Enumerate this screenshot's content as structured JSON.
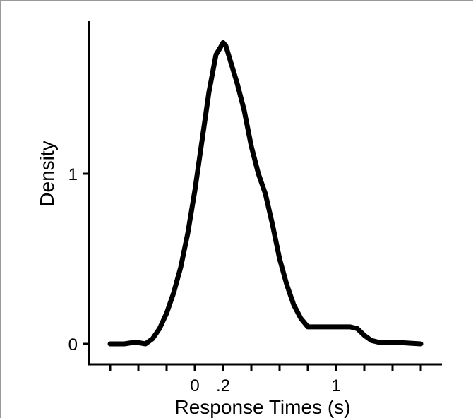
{
  "chart_data": {
    "type": "line",
    "title": "",
    "xlabel": "Response Times (s)",
    "ylabel": "Density",
    "xlim": [
      -0.6,
      1.6
    ],
    "ylim": [
      0,
      1.78
    ],
    "x_ticks": [
      -0.6,
      -0.4,
      -0.2,
      0,
      0.2,
      0.4,
      0.6,
      0.8,
      1.0,
      1.2,
      1.4,
      1.6
    ],
    "x_tick_labels": [
      {
        "value": 0,
        "label": "0"
      },
      {
        "value": 0.2,
        "label": ".2"
      },
      {
        "value": 1.0,
        "label": "1"
      }
    ],
    "y_ticks": [
      {
        "value": 0,
        "label": "0"
      },
      {
        "value": 1,
        "label": "1"
      }
    ],
    "grid": false,
    "line_color": "#000000",
    "series": [
      {
        "x": [
          -0.6,
          -0.5,
          -0.42,
          -0.35,
          -0.3,
          -0.25,
          -0.2,
          -0.15,
          -0.1,
          -0.05,
          0,
          0.05,
          0.1,
          0.15,
          0.18,
          0.2,
          0.22,
          0.26,
          0.3,
          0.35,
          0.4,
          0.45,
          0.5,
          0.55,
          0.6,
          0.65,
          0.7,
          0.75,
          0.8,
          0.85,
          0.9,
          0.95,
          1.0,
          1.05,
          1.1,
          1.15,
          1.2,
          1.25,
          1.3,
          1.4,
          1.5,
          1.6
        ],
        "y": [
          0.0,
          0.0,
          0.01,
          0.0,
          0.03,
          0.09,
          0.18,
          0.3,
          0.45,
          0.65,
          0.9,
          1.19,
          1.48,
          1.7,
          1.74,
          1.77,
          1.75,
          1.64,
          1.53,
          1.37,
          1.16,
          1.0,
          0.88,
          0.7,
          0.5,
          0.35,
          0.23,
          0.15,
          0.1,
          0.1,
          0.1,
          0.1,
          0.1,
          0.1,
          0.1,
          0.09,
          0.05,
          0.02,
          0.01,
          0.01,
          0.005,
          0.0
        ]
      }
    ]
  }
}
